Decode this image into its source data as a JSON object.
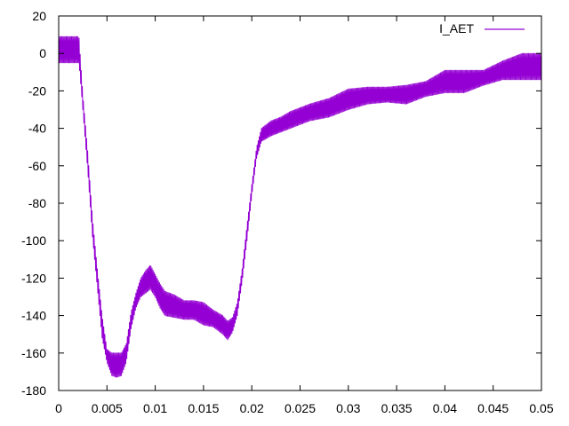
{
  "chart_data": {
    "type": "line",
    "title": "",
    "xlabel": "",
    "ylabel": "",
    "xlim": [
      0,
      0.05
    ],
    "ylim": [
      -180,
      20
    ],
    "x_ticks": [
      0,
      0.005,
      0.01,
      0.015,
      0.02,
      0.025,
      0.03,
      0.035,
      0.04,
      0.045,
      0.05
    ],
    "x_tick_labels": [
      "0",
      "0.005",
      "0.01",
      "0.015",
      "0.02",
      "0.025",
      "0.03",
      "0.035",
      "0.04",
      "0.045",
      "0.05"
    ],
    "y_ticks": [
      20,
      0,
      -20,
      -40,
      -60,
      -80,
      -100,
      -120,
      -140,
      -160,
      -180
    ],
    "y_tick_labels": [
      "20",
      "0",
      "-20",
      "-40",
      "-60",
      "-80",
      "-100",
      "-120",
      "-140",
      "-160",
      "-180"
    ],
    "grid": false,
    "legend_position": "top-right",
    "series": [
      {
        "name": "I_AET",
        "color": "#9400d3",
        "envelope": {
          "x": [
            0,
            0.0021,
            0.0025,
            0.003,
            0.0035,
            0.004,
            0.0045,
            0.005,
            0.0055,
            0.006,
            0.0065,
            0.007,
            0.0075,
            0.008,
            0.0085,
            0.009,
            0.0095,
            0.01,
            0.0105,
            0.011,
            0.012,
            0.013,
            0.014,
            0.015,
            0.016,
            0.017,
            0.0175,
            0.018,
            0.0185,
            0.019,
            0.0195,
            0.02,
            0.0205,
            0.021,
            0.022,
            0.023,
            0.024,
            0.025,
            0.026,
            0.028,
            0.03,
            0.032,
            0.034,
            0.036,
            0.038,
            0.04,
            0.042,
            0.044,
            0.046,
            0.048,
            0.05
          ],
          "upper": [
            9,
            9,
            -22,
            -52,
            -88,
            -115,
            -140,
            -158,
            -160,
            -160,
            -160,
            -155,
            -138,
            -128,
            -120,
            -116,
            -113,
            -118,
            -123,
            -127,
            -129,
            -132,
            -132,
            -133,
            -137,
            -140,
            -143,
            -141,
            -133,
            -115,
            -92,
            -70,
            -50,
            -40,
            -36,
            -34,
            -31,
            -29,
            -27,
            -24,
            -19,
            -18,
            -18,
            -17,
            -15,
            -9,
            -9,
            -9,
            -4,
            0,
            0
          ],
          "lower": [
            -5,
            -5,
            -30,
            -62,
            -98,
            -125,
            -152,
            -165,
            -172,
            -173,
            -172,
            -165,
            -147,
            -136,
            -130,
            -128,
            -126,
            -130,
            -136,
            -140,
            -141,
            -142,
            -142,
            -145,
            -146,
            -150,
            -153,
            -149,
            -140,
            -122,
            -100,
            -76,
            -56,
            -47,
            -44,
            -42,
            -40,
            -38,
            -36,
            -34,
            -30,
            -27,
            -26,
            -27,
            -23,
            -21,
            -21,
            -17,
            -14,
            -14,
            -14
          ]
        }
      }
    ]
  }
}
